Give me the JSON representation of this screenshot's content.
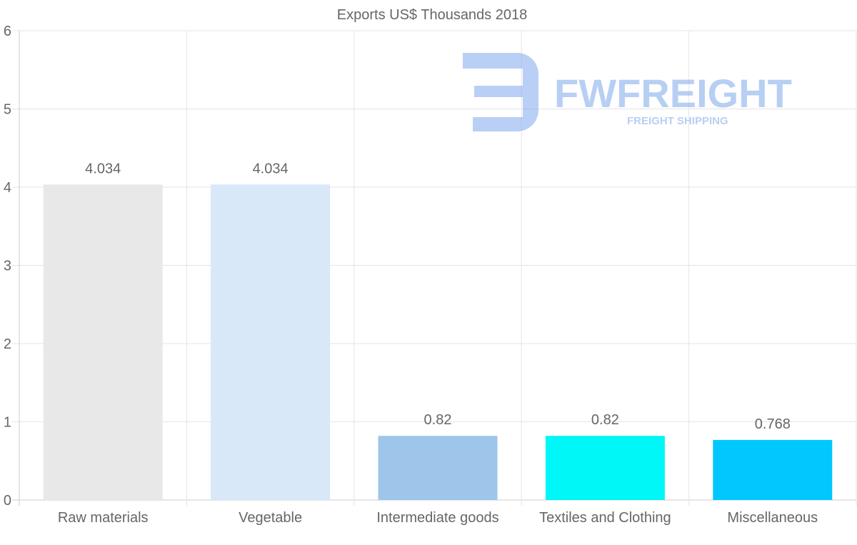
{
  "chart_data": {
    "type": "bar",
    "title": "Exports US$ Thousands 2018",
    "categories": [
      "Raw materials",
      "Vegetable",
      "Intermediate goods",
      "Textiles and Clothing",
      "Miscellaneous"
    ],
    "values": [
      4.034,
      4.034,
      0.82,
      0.82,
      0.768
    ],
    "value_labels": [
      "4.034",
      "4.034",
      "0.82",
      "0.82",
      "0.768"
    ],
    "colors": [
      "#e8e8e8",
      "#d8e8f8",
      "#9dc6ea",
      "#00f7f7",
      "#00c8ff"
    ],
    "ylim": [
      0,
      6
    ],
    "yticks": [
      "0",
      "1",
      "2",
      "3",
      "4",
      "5",
      "6"
    ],
    "xlabel": "",
    "ylabel": "",
    "grid": true
  },
  "watermark": {
    "brand": "FWFREIGHT",
    "tagline": "FREIGHT SHIPPING",
    "color": "#7fa8ec"
  }
}
